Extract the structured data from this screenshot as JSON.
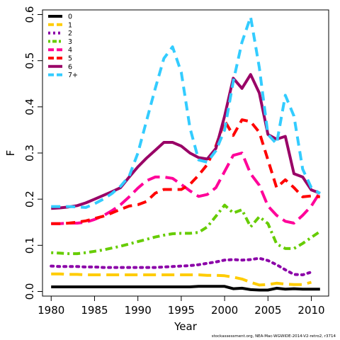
{
  "chart_data": {
    "type": "line",
    "xlabel": "Year",
    "ylabel": "F",
    "xlim": [
      1979,
      2012
    ],
    "ylim": [
      -0.01,
      0.61
    ],
    "x_ticks": [
      1980,
      1985,
      1990,
      1995,
      2000,
      2005,
      2010
    ],
    "y_ticks": [
      0.0,
      0.1,
      0.2,
      0.3,
      0.4,
      0.5,
      0.6
    ],
    "x_tick_labels": [
      "1980",
      "1985",
      "1990",
      "1995",
      "2000",
      "2005",
      "2010"
    ],
    "y_tick_labels": [
      "0.0",
      "0.1",
      "0.2",
      "0.3",
      "0.4",
      "0.5",
      "0.6"
    ],
    "grid": false,
    "legend_position": "top-left",
    "credit": "stockassessment.org, NEA-Mac-WGWIDE-2014-V2-retro2, r3714",
    "series": [
      {
        "name": "0",
        "color": "#000000",
        "dash": "solid",
        "x": [
          1980,
          1981,
          1982,
          1983,
          1984,
          1985,
          1986,
          1987,
          1988,
          1989,
          1990,
          1991,
          1992,
          1993,
          1994,
          1995,
          1996,
          1997,
          1998,
          1999,
          2000,
          2001,
          2002,
          2003,
          2004,
          2005,
          2006,
          2007,
          2008,
          2009,
          2010,
          2011
        ],
        "y": [
          0.01,
          0.01,
          0.01,
          0.01,
          0.01,
          0.01,
          0.01,
          0.01,
          0.01,
          0.01,
          0.01,
          0.01,
          0.01,
          0.01,
          0.01,
          0.01,
          0.01,
          0.011,
          0.011,
          0.011,
          0.011,
          0.006,
          0.007,
          0.004,
          0.003,
          0.003,
          0.007,
          0.005,
          0.006,
          0.005,
          0.005,
          0.005
        ]
      },
      {
        "name": "1",
        "color": "#ffcc00",
        "dash": "longdash",
        "x": [
          1980,
          1981,
          1982,
          1983,
          1984,
          1985,
          1986,
          1987,
          1988,
          1989,
          1990,
          1991,
          1992,
          1993,
          1994,
          1995,
          1996,
          1997,
          1998,
          1999,
          2000,
          2001,
          2002,
          2003,
          2004,
          2005,
          2006,
          2007,
          2008,
          2009,
          2010
        ],
        "y": [
          0.038,
          0.038,
          0.037,
          0.037,
          0.036,
          0.036,
          0.036,
          0.036,
          0.036,
          0.036,
          0.036,
          0.036,
          0.036,
          0.036,
          0.036,
          0.036,
          0.036,
          0.036,
          0.035,
          0.035,
          0.034,
          0.031,
          0.027,
          0.02,
          0.014,
          0.015,
          0.018,
          0.016,
          0.015,
          0.015,
          0.02
        ]
      },
      {
        "name": "2",
        "color": "#8b00a8",
        "dash": "dotted",
        "x": [
          1980,
          1981,
          1982,
          1983,
          1984,
          1985,
          1986,
          1987,
          1988,
          1989,
          1990,
          1991,
          1992,
          1993,
          1994,
          1995,
          1996,
          1997,
          1998,
          1999,
          2000,
          2001,
          2002,
          2003,
          2004,
          2005,
          2006,
          2007,
          2008,
          2009,
          2010
        ],
        "y": [
          0.055,
          0.054,
          0.054,
          0.054,
          0.053,
          0.053,
          0.052,
          0.052,
          0.052,
          0.052,
          0.052,
          0.052,
          0.052,
          0.053,
          0.054,
          0.055,
          0.056,
          0.058,
          0.061,
          0.064,
          0.068,
          0.069,
          0.068,
          0.069,
          0.072,
          0.067,
          0.058,
          0.047,
          0.037,
          0.036,
          0.042
        ]
      },
      {
        "name": "3",
        "color": "#66cc00",
        "dash": "dashdot",
        "x": [
          1980,
          1981,
          1982,
          1983,
          1984,
          1985,
          1986,
          1987,
          1988,
          1989,
          1990,
          1991,
          1992,
          1993,
          1994,
          1995,
          1996,
          1997,
          1998,
          1999,
          2000,
          2001,
          2002,
          2003,
          2004,
          2005,
          2006,
          2007,
          2008,
          2009,
          2010,
          2011
        ],
        "y": [
          0.084,
          0.083,
          0.082,
          0.082,
          0.084,
          0.087,
          0.09,
          0.094,
          0.098,
          0.103,
          0.108,
          0.113,
          0.118,
          0.122,
          0.125,
          0.126,
          0.126,
          0.128,
          0.14,
          0.163,
          0.187,
          0.17,
          0.177,
          0.14,
          0.162,
          0.147,
          0.103,
          0.093,
          0.093,
          0.104,
          0.117,
          0.13
        ]
      },
      {
        "name": "4",
        "color": "#ff0099",
        "dash": "longdash",
        "x": [
          1980,
          1981,
          1982,
          1983,
          1984,
          1985,
          1986,
          1987,
          1988,
          1989,
          1990,
          1991,
          1992,
          1993,
          1994,
          1995,
          1996,
          1997,
          1998,
          1999,
          2000,
          2001,
          2002,
          2003,
          2004,
          2005,
          2006,
          2007,
          2008,
          2009,
          2010,
          2011
        ],
        "y": [
          0.147,
          0.147,
          0.148,
          0.148,
          0.15,
          0.156,
          0.164,
          0.175,
          0.188,
          0.205,
          0.224,
          0.24,
          0.248,
          0.248,
          0.245,
          0.232,
          0.218,
          0.206,
          0.21,
          0.225,
          0.26,
          0.295,
          0.3,
          0.255,
          0.23,
          0.185,
          0.165,
          0.152,
          0.148,
          0.165,
          0.185,
          0.215
        ]
      },
      {
        "name": "5",
        "color": "#ff0000",
        "dash": "dashed",
        "x": [
          1980,
          1981,
          1982,
          1983,
          1984,
          1985,
          1986,
          1987,
          1988,
          1989,
          1990,
          1991,
          1992,
          1993,
          1994,
          1995,
          1996,
          1997,
          1998,
          1999,
          2000,
          2001,
          2002,
          2003,
          2004,
          2005,
          2006,
          2007,
          2008,
          2009,
          2010,
          2011
        ],
        "y": [
          0.147,
          0.147,
          0.148,
          0.15,
          0.153,
          0.158,
          0.163,
          0.17,
          0.178,
          0.185,
          0.188,
          0.195,
          0.213,
          0.221,
          0.221,
          0.221,
          0.232,
          0.252,
          0.275,
          0.315,
          0.37,
          0.338,
          0.372,
          0.368,
          0.345,
          0.285,
          0.225,
          0.242,
          0.225,
          0.205,
          0.207,
          0.205
        ]
      },
      {
        "name": "6",
        "color": "#990066",
        "dash": "solid",
        "x": [
          1980,
          1981,
          1982,
          1983,
          1984,
          1985,
          1986,
          1987,
          1988,
          1989,
          1990,
          1991,
          1992,
          1993,
          1994,
          1995,
          1996,
          1997,
          1998,
          1999,
          2000,
          2001,
          2002,
          2003,
          2004,
          2005,
          2006,
          2007,
          2008,
          2009,
          2010,
          2011
        ],
        "y": [
          0.18,
          0.181,
          0.183,
          0.186,
          0.192,
          0.2,
          0.208,
          0.216,
          0.225,
          0.248,
          0.27,
          0.289,
          0.306,
          0.323,
          0.323,
          0.315,
          0.3,
          0.29,
          0.287,
          0.31,
          0.38,
          0.462,
          0.44,
          0.47,
          0.43,
          0.34,
          0.33,
          0.336,
          0.255,
          0.248,
          0.22,
          0.213
        ]
      },
      {
        "name": "7+",
        "color": "#33ccff",
        "dash": "dashed",
        "x": [
          1980,
          1981,
          1982,
          1983,
          1984,
          1985,
          1986,
          1987,
          1988,
          1989,
          1990,
          1991,
          1992,
          1993,
          1994,
          1995,
          1996,
          1997,
          1998,
          1999,
          2000,
          2001,
          2002,
          2003,
          2004,
          2005,
          2006,
          2007,
          2008,
          2009,
          2010,
          2011
        ],
        "y": [
          0.184,
          0.184,
          0.184,
          0.183,
          0.182,
          0.19,
          0.2,
          0.212,
          0.228,
          0.25,
          0.3,
          0.37,
          0.44,
          0.505,
          0.53,
          0.475,
          0.355,
          0.285,
          0.28,
          0.305,
          0.35,
          0.455,
          0.54,
          0.595,
          0.485,
          0.34,
          0.32,
          0.425,
          0.38,
          0.265,
          0.225,
          0.212
        ]
      }
    ]
  }
}
